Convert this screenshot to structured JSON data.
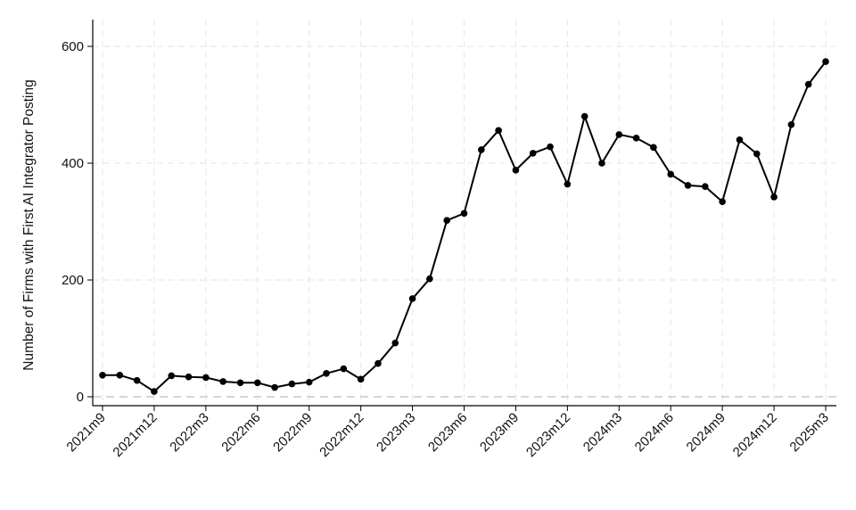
{
  "chart_data": {
    "type": "line",
    "title": "",
    "xlabel": "",
    "ylabel": "Number of Firms with First AI Integrator Posting",
    "x": [
      "2021m9",
      "2021m10",
      "2021m11",
      "2021m12",
      "2022m1",
      "2022m2",
      "2022m3",
      "2022m4",
      "2022m5",
      "2022m6",
      "2022m7",
      "2022m8",
      "2022m9",
      "2022m10",
      "2022m11",
      "2022m12",
      "2023m1",
      "2023m2",
      "2023m3",
      "2023m4",
      "2023m5",
      "2023m6",
      "2023m7",
      "2023m8",
      "2023m9",
      "2023m10",
      "2023m11",
      "2023m12",
      "2024m1",
      "2024m2",
      "2024m3",
      "2024m4",
      "2024m5",
      "2024m6",
      "2024m7",
      "2024m8",
      "2024m9",
      "2024m10",
      "2024m11",
      "2024m12",
      "2025m1",
      "2025m2",
      "2025m3"
    ],
    "series": [
      {
        "values": [
          37,
          37,
          28,
          9,
          36,
          34,
          33,
          26,
          24,
          24,
          16,
          22,
          25,
          40,
          48,
          30,
          57,
          92,
          168,
          202,
          302,
          314,
          423,
          456,
          388,
          417,
          428,
          364,
          480,
          400,
          449,
          443,
          427,
          381,
          362,
          360,
          334,
          440,
          416,
          342,
          466,
          535,
          574
        ]
      }
    ],
    "x_tick_labels": [
      "2021m9",
      "2021m12",
      "2022m3",
      "2022m6",
      "2022m9",
      "2022m12",
      "2023m3",
      "2023m6",
      "2023m9",
      "2023m12",
      "2024m3",
      "2024m6",
      "2024m9",
      "2024m12",
      "2025m3"
    ],
    "y_ticks": [
      0,
      200,
      400,
      600
    ],
    "ylim": [
      -12,
      625
    ],
    "grid": true,
    "zero_reference_line": true,
    "line_color": "#000000",
    "grid_color": "#e6e6e6"
  }
}
